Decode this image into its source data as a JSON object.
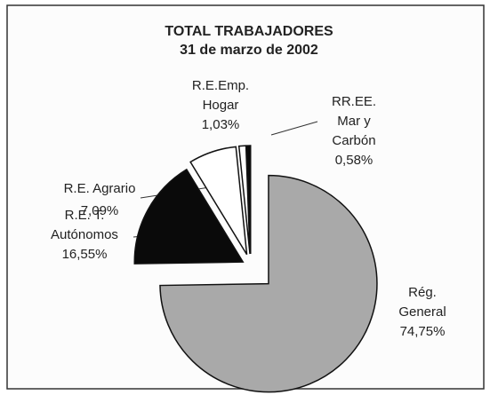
{
  "chart_data": {
    "type": "pie",
    "title": "TOTAL TRABAJADORES",
    "subtitle": "31 de marzo de 2002",
    "categories": [
      [
        "Rég.",
        "General"
      ],
      [
        "R.E. T.",
        "Autónomos"
      ],
      [
        "R.E. Agrario"
      ],
      [
        "R.E.Emp.",
        "Hogar"
      ],
      [
        "RR.EE.",
        "Mar y",
        "Carbón"
      ]
    ],
    "values": [
      74.75,
      16.55,
      7.09,
      1.03,
      0.58
    ],
    "value_labels": [
      "74,75%",
      "16,55%",
      "7,09%",
      "1,03%",
      "0,58%"
    ],
    "colors": [
      "#a9a9a9",
      "#0a0a0a",
      "#ffffff",
      "#ffffff",
      "#0a0a0a"
    ]
  }
}
